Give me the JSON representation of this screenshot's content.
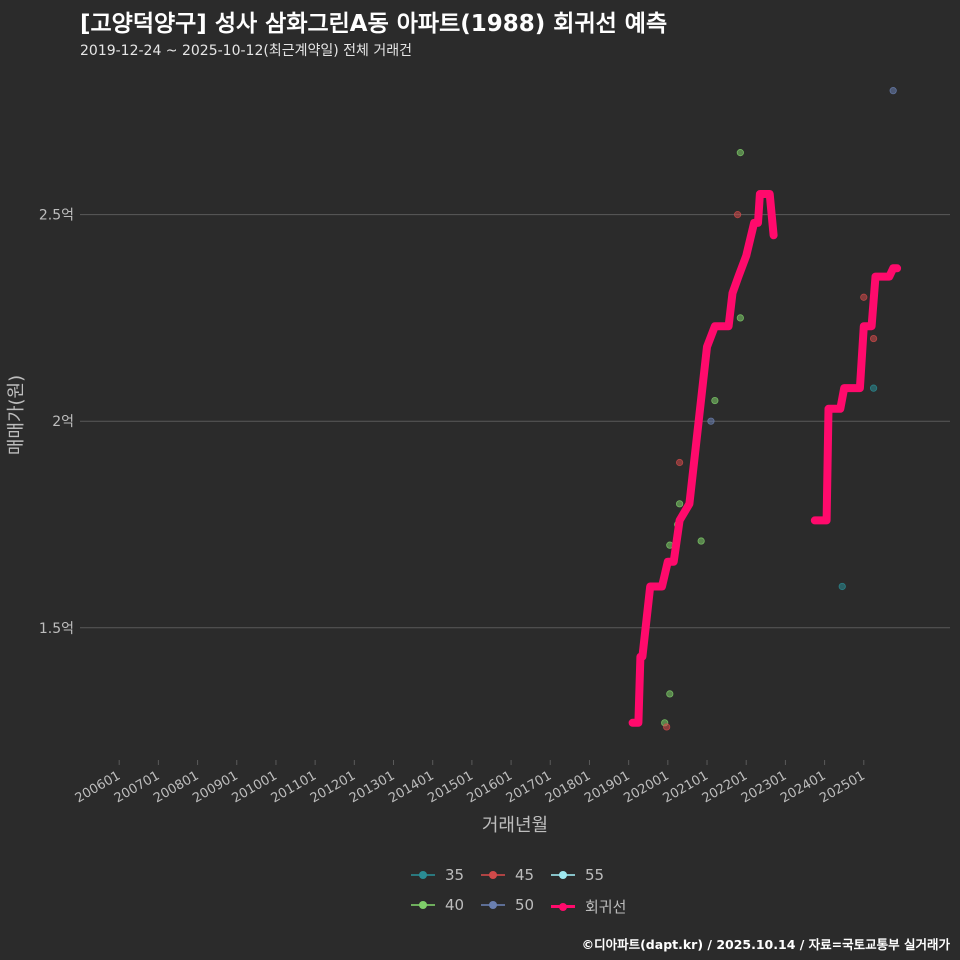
{
  "chart_data": {
    "type": "scatter",
    "title": "[고양덕양구] 성사 삼화그린A동 아파트(1988) 회귀선 예측",
    "subtitle": "2019-12-24 ~ 2025-10-12(최근계약일) 전체 거래건",
    "xlabel": "거래년월",
    "ylabel": "매매가(원)",
    "ylim_eok": [
      1.18,
      2.85
    ],
    "xlim": [
      2005.0,
      2027.2
    ],
    "x_ticks": [
      {
        "label": "200601",
        "x": 2006.0
      },
      {
        "label": "200701",
        "x": 2007.0
      },
      {
        "label": "200801",
        "x": 2008.0
      },
      {
        "label": "200901",
        "x": 2009.0
      },
      {
        "label": "201001",
        "x": 2010.0
      },
      {
        "label": "201101",
        "x": 2011.0
      },
      {
        "label": "201201",
        "x": 2012.0
      },
      {
        "label": "201301",
        "x": 2013.0
      },
      {
        "label": "201401",
        "x": 2014.0
      },
      {
        "label": "201501",
        "x": 2015.0
      },
      {
        "label": "201601",
        "x": 2016.0
      },
      {
        "label": "201701",
        "x": 2017.0
      },
      {
        "label": "201801",
        "x": 2018.0
      },
      {
        "label": "201901",
        "x": 2019.0
      },
      {
        "label": "202001",
        "x": 2020.0
      },
      {
        "label": "202101",
        "x": 2021.0
      },
      {
        "label": "202201",
        "x": 2022.0
      },
      {
        "label": "202301",
        "x": 2023.0
      },
      {
        "label": "202401",
        "x": 2024.0
      },
      {
        "label": "202501",
        "x": 2025.0
      }
    ],
    "y_ticks": [
      {
        "label": "1.5억",
        "value": 1.5
      },
      {
        "label": "2억",
        "value": 2.0
      },
      {
        "label": "2.5억",
        "value": 2.5
      }
    ],
    "legend_position": "bottom",
    "series": [
      {
        "name": "35",
        "color": "#2a8c94",
        "points": [
          [
            2024.45,
            1.6
          ],
          [
            2025.25,
            2.08
          ]
        ]
      },
      {
        "name": "40",
        "color": "#7fcf6a",
        "points": [
          [
            2019.92,
            1.27
          ],
          [
            2020.05,
            1.34
          ],
          [
            2020.05,
            1.7
          ],
          [
            2020.3,
            1.8
          ],
          [
            2020.25,
            1.75
          ],
          [
            2020.85,
            1.71
          ],
          [
            2021.2,
            2.05
          ],
          [
            2021.85,
            2.25
          ],
          [
            2021.85,
            2.65
          ]
        ]
      },
      {
        "name": "45",
        "color": "#d04a4a",
        "points": [
          [
            2019.97,
            1.26
          ],
          [
            2020.3,
            1.9
          ],
          [
            2021.78,
            2.5
          ],
          [
            2025.0,
            2.3
          ],
          [
            2025.25,
            2.2
          ]
        ]
      },
      {
        "name": "50",
        "color": "#6a7fb0",
        "points": [
          [
            2021.1,
            2.0
          ],
          [
            2025.75,
            2.8
          ]
        ]
      },
      {
        "name": "55",
        "color": "#9fe8f0",
        "points": []
      }
    ],
    "regression_line": {
      "name": "회귀선",
      "color": "#ff0a6c",
      "segments": [
        [
          [
            2019.1,
            1.27
          ],
          [
            2019.25,
            1.27
          ],
          [
            2019.3,
            1.43
          ],
          [
            2019.35,
            1.43
          ],
          [
            2019.55,
            1.6
          ],
          [
            2019.85,
            1.6
          ],
          [
            2020.0,
            1.66
          ],
          [
            2020.15,
            1.66
          ],
          [
            2020.3,
            1.76
          ],
          [
            2020.55,
            1.8
          ],
          [
            2021.0,
            2.18
          ],
          [
            2021.2,
            2.23
          ],
          [
            2021.55,
            2.23
          ],
          [
            2021.65,
            2.31
          ],
          [
            2021.8,
            2.35
          ],
          [
            2022.0,
            2.4
          ],
          [
            2022.2,
            2.48
          ],
          [
            2022.3,
            2.48
          ],
          [
            2022.35,
            2.55
          ],
          [
            2022.6,
            2.55
          ],
          [
            2022.7,
            2.45
          ]
        ],
        [
          [
            2023.75,
            1.76
          ],
          [
            2024.05,
            1.76
          ],
          [
            2024.1,
            2.03
          ],
          [
            2024.4,
            2.03
          ],
          [
            2024.5,
            2.08
          ],
          [
            2024.9,
            2.08
          ],
          [
            2025.0,
            2.23
          ],
          [
            2025.2,
            2.23
          ],
          [
            2025.3,
            2.35
          ],
          [
            2025.65,
            2.35
          ],
          [
            2025.75,
            2.37
          ],
          [
            2025.85,
            2.37
          ]
        ]
      ]
    }
  },
  "legend": {
    "items": [
      {
        "label": "35",
        "color": "#2a8c94"
      },
      {
        "label": "45",
        "color": "#d04a4a"
      },
      {
        "label": "55",
        "color": "#9fe8f0"
      },
      {
        "label": "40",
        "color": "#7fcf6a"
      },
      {
        "label": "50",
        "color": "#6a7fb0"
      },
      {
        "label": "회귀선",
        "color": "#ff0a6c"
      }
    ]
  },
  "caption": "©디아파트(dapt.kr) / 2025.10.14 / 자료=국토교통부 실거래가",
  "colors": {
    "background": "#2b2b2b",
    "grid": "#5a5a5a",
    "axis_text": "#bdbdbd"
  }
}
